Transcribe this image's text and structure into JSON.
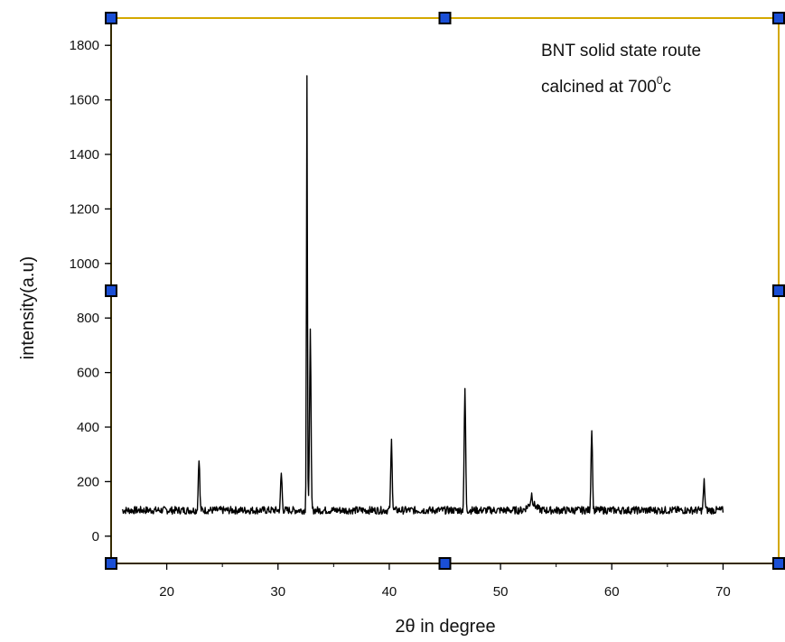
{
  "chart_data": {
    "type": "line",
    "title": "",
    "xlabel": "2θ in degree",
    "ylabel": "intensity(a.u)",
    "xlim": [
      15,
      75
    ],
    "ylim": [
      -100,
      1900
    ],
    "x_ticks": [
      20,
      30,
      40,
      50,
      60,
      70
    ],
    "y_ticks": [
      0,
      200,
      400,
      600,
      800,
      1000,
      1200,
      1400,
      1600,
      1800
    ],
    "grid": false,
    "legend": "none",
    "line_color": "#000000",
    "frame_color": "#d4a800",
    "baseline_intensity": 95,
    "data_range_x": [
      16,
      70
    ],
    "peaks": [
      {
        "x": 22.9,
        "y": 290
      },
      {
        "x": 30.3,
        "y": 230
      },
      {
        "x": 32.6,
        "y": 1690
      },
      {
        "x": 32.9,
        "y": 750
      },
      {
        "x": 40.2,
        "y": 350
      },
      {
        "x": 46.8,
        "y": 540
      },
      {
        "x": 52.8,
        "y": 130
      },
      {
        "x": 58.2,
        "y": 400
      },
      {
        "x": 68.3,
        "y": 200
      }
    ],
    "annotations": [
      {
        "text": "BNT solid state route"
      },
      {
        "text": "calcined at 700",
        "superscript": "0",
        "suffix": "c"
      }
    ]
  }
}
